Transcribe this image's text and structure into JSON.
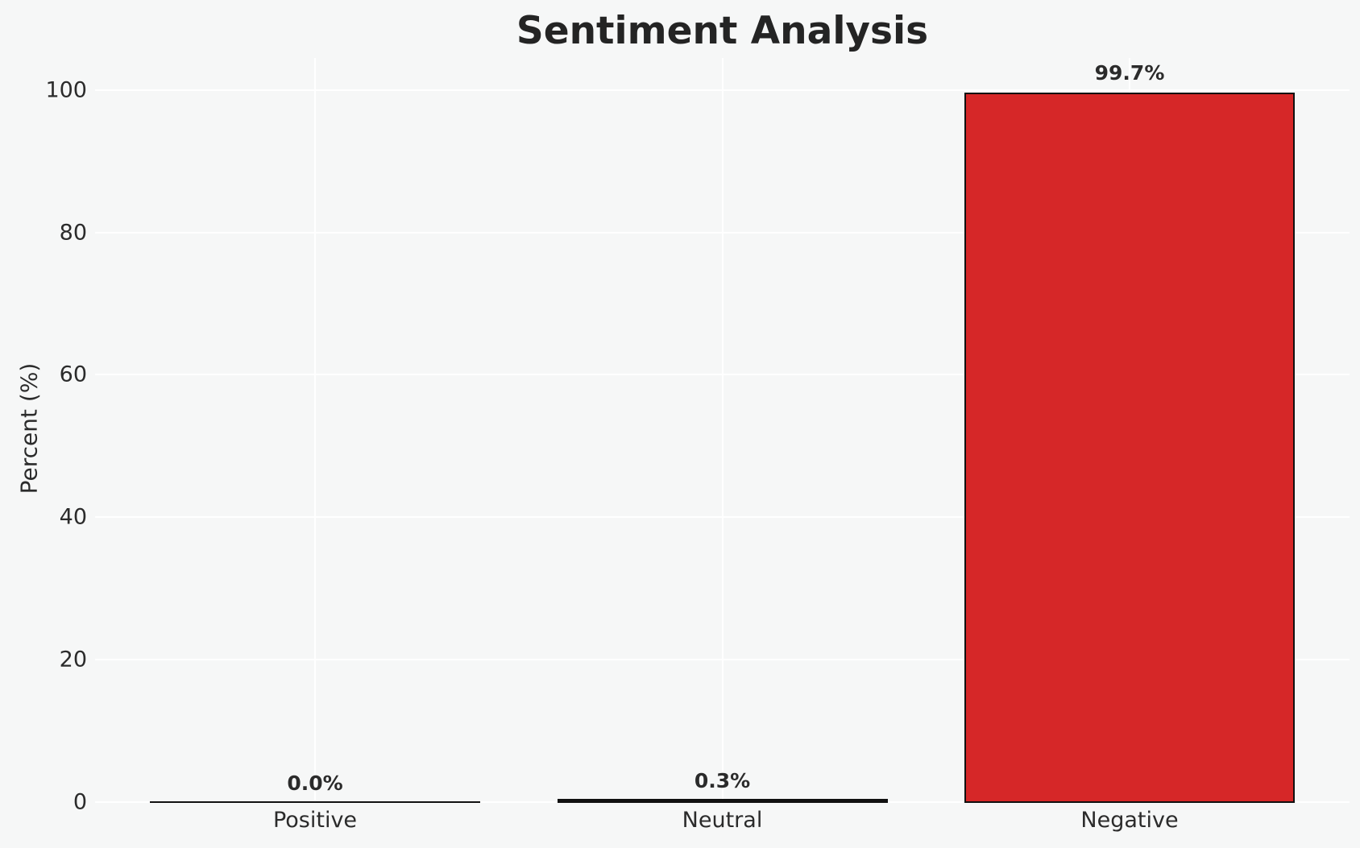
{
  "chart_data": {
    "type": "bar",
    "title": "Sentiment Analysis",
    "xlabel": "",
    "ylabel": "Percent (%)",
    "categories": [
      "Positive",
      "Neutral",
      "Negative"
    ],
    "values": [
      0.0,
      0.3,
      99.7
    ],
    "bar_labels": [
      "0.0%",
      "0.3%",
      "99.7%"
    ],
    "yticks": [
      0,
      20,
      40,
      60,
      80,
      100
    ],
    "ylim": [
      0,
      104.5
    ],
    "grid": true,
    "legend": false,
    "bar_colors": [
      null,
      null,
      "#d62728"
    ],
    "bar_edge_color": "#111111"
  },
  "style": {
    "background": "#f6f7f7",
    "grid_color": "#ffffff",
    "text_color": "#2b2b2b",
    "title_color": "#242424"
  }
}
